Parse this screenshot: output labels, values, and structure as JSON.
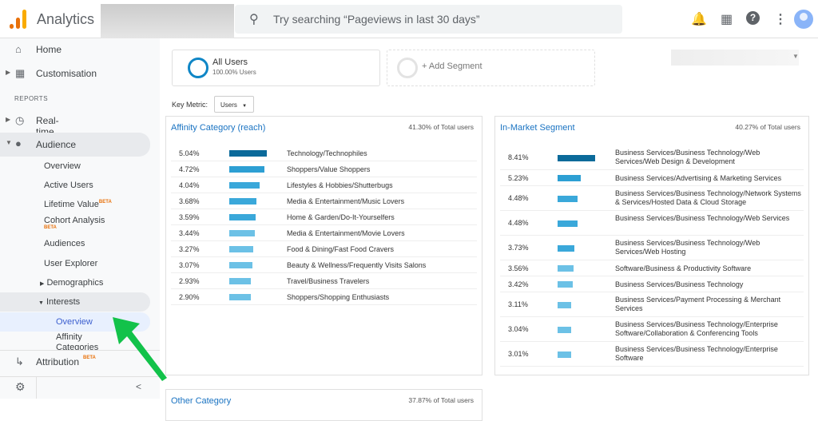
{
  "header": {
    "app_name": "Analytics",
    "search_placeholder": "Try searching “Pageviews in last 30 days”",
    "icons": [
      "bell-icon",
      "apps-grid-icon",
      "help-icon",
      "more-vert-icon",
      "avatar"
    ]
  },
  "sidebar": {
    "home": "Home",
    "customisation": "Customisation",
    "reports_label": "REPORTS",
    "realtime": "Real-time",
    "audience": "Audience",
    "audience_items": [
      "Overview",
      "Active Users",
      "Lifetime Value",
      "Cohort Analysis",
      "Audiences",
      "User Explorer"
    ],
    "beta": "BETA",
    "demographics": "Demographics",
    "interests": "Interests",
    "interests_overview": "Overview",
    "affinity": "Affinity Categories",
    "attribution": "Attribution",
    "collapse": "<"
  },
  "segments": {
    "all_users": "All Users",
    "all_users_pct": "100.00% Users",
    "add": "+ Add Segment"
  },
  "key_metric": {
    "label": "Key Metric:",
    "value": "Users"
  },
  "colors": {
    "bar_dark": "#0b6a9a",
    "bar_mid": "#2d9fd3",
    "bar_light": "#6cc1e6",
    "accent": "#1a73c2",
    "arrow": "#12c24a"
  },
  "affinity": {
    "title": "Affinity Category (reach)",
    "total": "41.30% of Total users",
    "rows": [
      {
        "value": "5.04%",
        "pct": 5.04,
        "name": "Technology/Technophiles"
      },
      {
        "value": "4.72%",
        "pct": 4.72,
        "name": "Shoppers/Value Shoppers"
      },
      {
        "value": "4.04%",
        "pct": 4.04,
        "name": "Lifestyles & Hobbies/Shutterbugs"
      },
      {
        "value": "3.68%",
        "pct": 3.68,
        "name": "Media & Entertainment/Music Lovers"
      },
      {
        "value": "3.59%",
        "pct": 3.59,
        "name": "Home & Garden/Do-It-Yourselfers"
      },
      {
        "value": "3.44%",
        "pct": 3.44,
        "name": "Media & Entertainment/Movie Lovers"
      },
      {
        "value": "3.27%",
        "pct": 3.27,
        "name": "Food & Dining/Fast Food Cravers"
      },
      {
        "value": "3.07%",
        "pct": 3.07,
        "name": "Beauty & Wellness/Frequently Visits Salons"
      },
      {
        "value": "2.93%",
        "pct": 2.93,
        "name": "Travel/Business Travelers"
      },
      {
        "value": "2.90%",
        "pct": 2.9,
        "name": "Shoppers/Shopping Enthusiasts"
      }
    ]
  },
  "in_market": {
    "title": "In-Market Segment",
    "total": "40.27% of Total users",
    "rows": [
      {
        "value": "8.41%",
        "pct": 8.41,
        "name": "Business Services/Business Technology/Web Services/Web Design & Development"
      },
      {
        "value": "5.23%",
        "pct": 5.23,
        "name": "Business Services/Advertising & Marketing Services"
      },
      {
        "value": "4.48%",
        "pct": 4.48,
        "name": "Business Services/Business Technology/Network Systems & Services/Hosted Data & Cloud Storage"
      },
      {
        "value": "4.48%",
        "pct": 4.48,
        "name": "Business Services/Business Technology/Web Services"
      },
      {
        "value": "3.73%",
        "pct": 3.73,
        "name": "Business Services/Business Technology/Web Services/Web Hosting"
      },
      {
        "value": "3.56%",
        "pct": 3.56,
        "name": "Software/Business & Productivity Software"
      },
      {
        "value": "3.42%",
        "pct": 3.42,
        "name": "Business Services/Business Technology"
      },
      {
        "value": "3.11%",
        "pct": 3.11,
        "name": "Business Services/Payment Processing & Merchant Services"
      },
      {
        "value": "3.04%",
        "pct": 3.04,
        "name": "Business Services/Business Technology/Enterprise Software/Collaboration & Conferencing Tools"
      },
      {
        "value": "3.01%",
        "pct": 3.01,
        "name": "Business Services/Business Technology/Enterprise Software"
      }
    ]
  },
  "other": {
    "title": "Other Category",
    "total": "37.87% of Total users"
  }
}
